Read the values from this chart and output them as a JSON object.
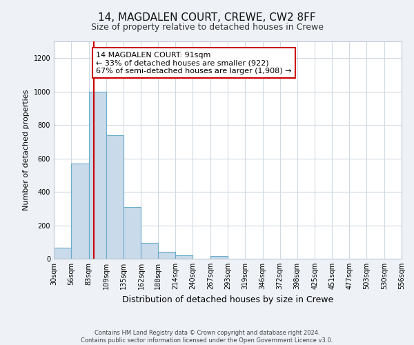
{
  "title1": "14, MAGDALEN COURT, CREWE, CW2 8FF",
  "title2": "Size of property relative to detached houses in Crewe",
  "xlabel": "Distribution of detached houses by size in Crewe",
  "ylabel": "Number of detached properties",
  "bin_edges": [
    30,
    56,
    83,
    109,
    135,
    162,
    188,
    214,
    240,
    267,
    293,
    319,
    346,
    372,
    398,
    425,
    451,
    477,
    503,
    530,
    556
  ],
  "bar_heights": [
    65,
    570,
    1000,
    740,
    310,
    95,
    40,
    20,
    0,
    15,
    0,
    0,
    0,
    0,
    0,
    0,
    0,
    0,
    0,
    0
  ],
  "bar_color": "#c9daea",
  "bar_edge_color": "#6aabcc",
  "bar_linewidth": 0.8,
  "red_line_x": 91,
  "red_line_color": "#cc0000",
  "annotation_text": "14 MAGDALEN COURT: 91sqm\n← 33% of detached houses are smaller (922)\n67% of semi-detached houses are larger (1,908) →",
  "annotation_box_color": "#ffffff",
  "annotation_box_edge": "#cc0000",
  "ylim": [
    0,
    1300
  ],
  "yticks": [
    0,
    200,
    400,
    600,
    800,
    1000,
    1200
  ],
  "footer": "Contains HM Land Registry data © Crown copyright and database right 2024.\nContains public sector information licensed under the Open Government Licence v3.0.",
  "bg_color": "#eef2f7",
  "plot_bg_color": "#ffffff",
  "grid_color": "#d0dae4",
  "title1_fontsize": 11,
  "title2_fontsize": 9,
  "ylabel_fontsize": 8,
  "xlabel_fontsize": 9,
  "tick_fontsize": 7,
  "footer_fontsize": 6,
  "annot_fontsize": 8
}
